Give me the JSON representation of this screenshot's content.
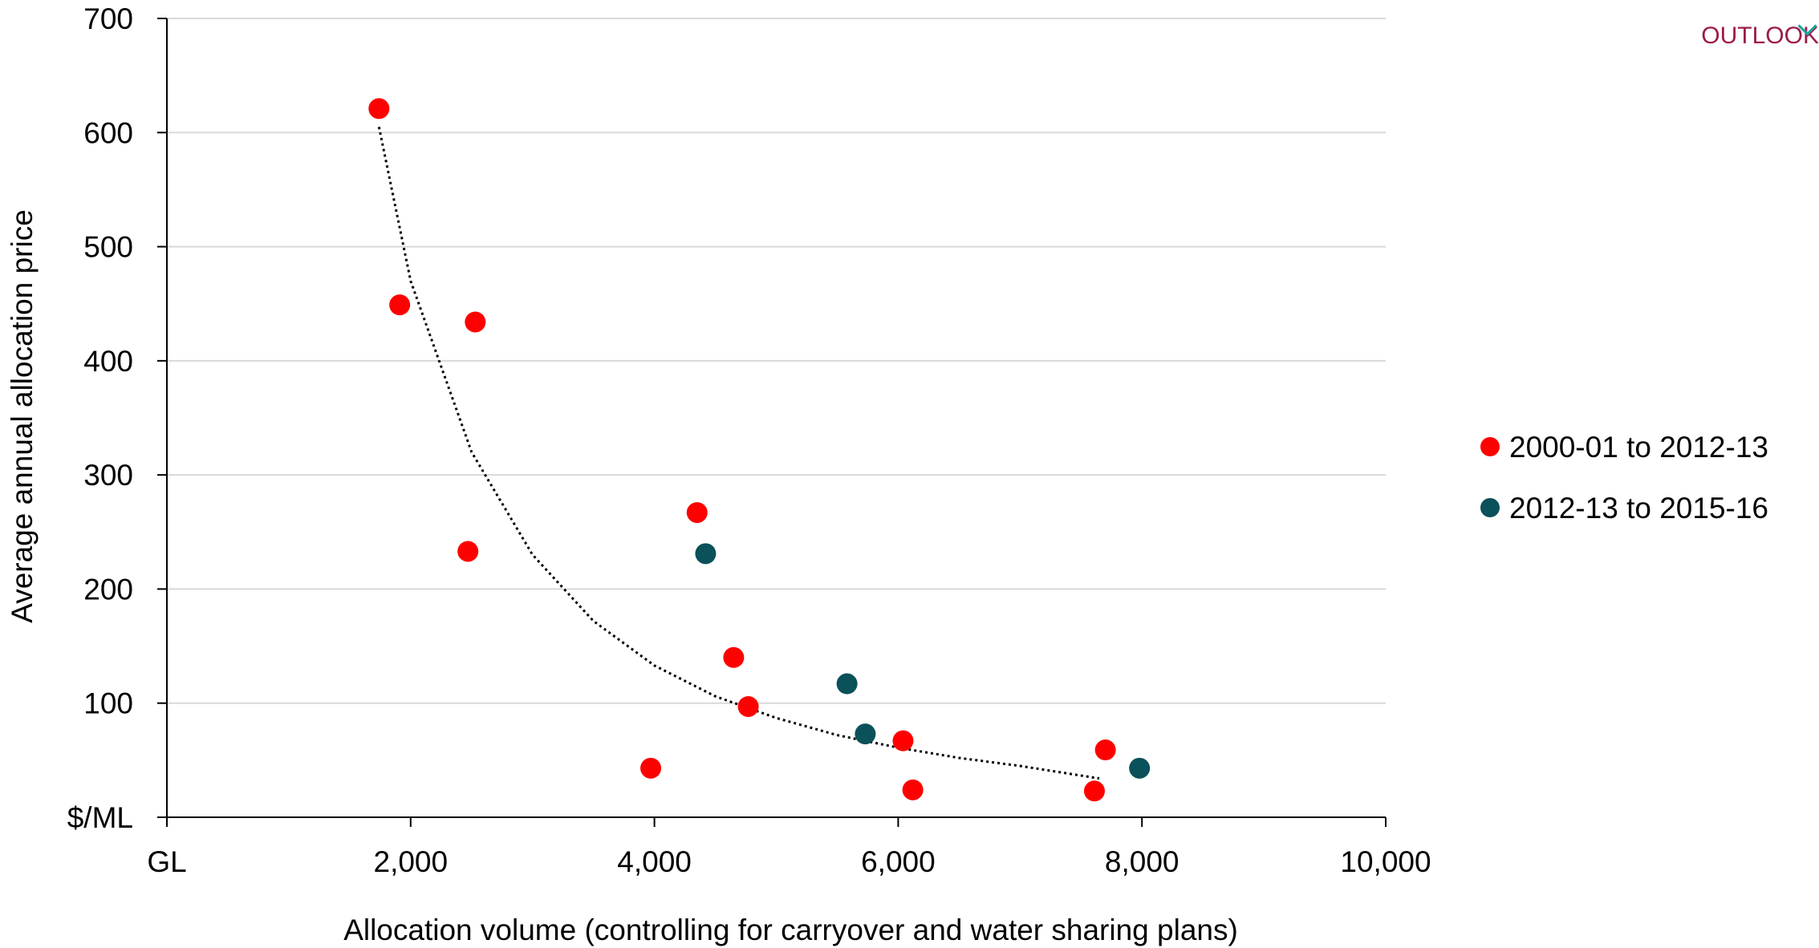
{
  "logo": {
    "text": "OUTLOOK",
    "accent_color": "#1aa59a",
    "text_color": "#9b1b4a"
  },
  "chart_data": {
    "type": "scatter",
    "title": "",
    "xlabel": "Allocation volume (controlling for carryover and water sharing plans)",
    "ylabel": "Average annual allocation price",
    "x_unit_label": "GL",
    "y_unit_label": "$/ML",
    "xlim": [
      0,
      10000
    ],
    "ylim": [
      0,
      700
    ],
    "x_ticks": [
      {
        "value": 0,
        "label": "GL"
      },
      {
        "value": 2000,
        "label": "2,000"
      },
      {
        "value": 4000,
        "label": "4,000"
      },
      {
        "value": 6000,
        "label": "6,000"
      },
      {
        "value": 8000,
        "label": "8,000"
      },
      {
        "value": 10000,
        "label": "10,000"
      }
    ],
    "y_ticks": [
      {
        "value": 0,
        "label": "$/ML"
      },
      {
        "value": 100,
        "label": "100"
      },
      {
        "value": 200,
        "label": "200"
      },
      {
        "value": 300,
        "label": "300"
      },
      {
        "value": 400,
        "label": "400"
      },
      {
        "value": 500,
        "label": "500"
      },
      {
        "value": 600,
        "label": "600"
      },
      {
        "value": 700,
        "label": "700"
      }
    ],
    "grid": "horizontal",
    "legend_position": "right",
    "series": [
      {
        "name": "2000-01 to 2012-13",
        "color": "#ff0000",
        "points": [
          {
            "x": 1740,
            "y": 621
          },
          {
            "x": 1910,
            "y": 449
          },
          {
            "x": 2530,
            "y": 434
          },
          {
            "x": 2470,
            "y": 233
          },
          {
            "x": 3970,
            "y": 43
          },
          {
            "x": 4350,
            "y": 267
          },
          {
            "x": 4650,
            "y": 140
          },
          {
            "x": 4770,
            "y": 97
          },
          {
            "x": 6040,
            "y": 67
          },
          {
            "x": 6120,
            "y": 24
          },
          {
            "x": 7610,
            "y": 23
          },
          {
            "x": 7700,
            "y": 59
          }
        ]
      },
      {
        "name": "2012-13 to 2015-16",
        "color": "#0a5159",
        "points": [
          {
            "x": 4420,
            "y": 231
          },
          {
            "x": 5580,
            "y": 117
          },
          {
            "x": 5730,
            "y": 73
          },
          {
            "x": 7980,
            "y": 43
          }
        ]
      }
    ],
    "trendline": {
      "type": "power",
      "style": "dotted",
      "color": "#000000",
      "x_range": [
        1740,
        7650
      ],
      "points": [
        {
          "x": 1740,
          "y": 605
        },
        {
          "x": 2000,
          "y": 470
        },
        {
          "x": 2500,
          "y": 320
        },
        {
          "x": 3000,
          "y": 230
        },
        {
          "x": 3500,
          "y": 172
        },
        {
          "x": 4000,
          "y": 133
        },
        {
          "x": 4500,
          "y": 106
        },
        {
          "x": 5000,
          "y": 87
        },
        {
          "x": 5500,
          "y": 72
        },
        {
          "x": 6000,
          "y": 61
        },
        {
          "x": 6500,
          "y": 52
        },
        {
          "x": 7000,
          "y": 45
        },
        {
          "x": 7650,
          "y": 34
        }
      ]
    }
  }
}
